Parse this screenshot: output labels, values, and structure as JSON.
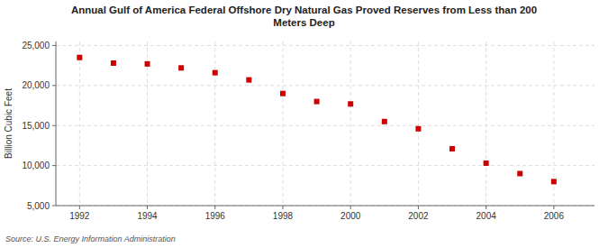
{
  "chart_data": {
    "type": "scatter",
    "title": "Annual Gulf of America Federal Offshore Dry Natural Gas Proved Reserves from Less than 200\nMeters Deep",
    "y_label": "Billion Cubic Feet",
    "source": "Source: U.S. Energy Information Administration",
    "x": [
      1992,
      1993,
      1994,
      1995,
      1996,
      1997,
      1998,
      1999,
      2000,
      2001,
      2002,
      2003,
      2004,
      2005,
      2006
    ],
    "values": [
      23500,
      22800,
      22700,
      22200,
      21600,
      20700,
      19000,
      18000,
      17700,
      15500,
      14600,
      12100,
      10300,
      9000,
      8000
    ],
    "color": "#cc0000",
    "marker": "square",
    "grid": true,
    "xlim": [
      1991.3,
      2007.2
    ],
    "xticks": [
      1992,
      1994,
      1996,
      1998,
      2000,
      2002,
      2004,
      2006
    ],
    "ylim": [
      5000,
      25500
    ],
    "yticks": [
      {
        "value": 5000,
        "label": "5,000"
      },
      {
        "value": 10000,
        "label": "10,000"
      },
      {
        "value": 15000,
        "label": "15,000"
      },
      {
        "value": 20000,
        "label": "20,000"
      },
      {
        "value": 25000,
        "label": "25,000"
      }
    ]
  }
}
